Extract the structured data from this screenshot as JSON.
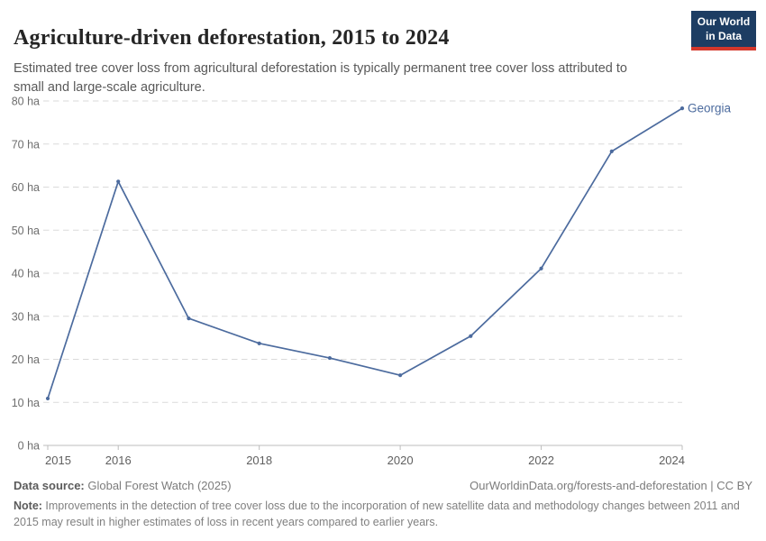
{
  "header": {
    "title": "Agriculture-driven deforestation, 2015 to 2024",
    "subtitle": "Estimated tree cover loss from agricultural deforestation is typically permanent tree cover loss attributed to small and large-scale agriculture."
  },
  "logo": {
    "line1": "Our World",
    "line2": "in Data",
    "bg_color": "#1D3D63",
    "accent_color": "#D4372B"
  },
  "chart_data": {
    "type": "line",
    "title": "Agriculture-driven deforestation, 2015 to 2024",
    "unit": "ha",
    "x": [
      2015,
      2016,
      2017,
      2018,
      2019,
      2020,
      2021,
      2022,
      2023,
      2024
    ],
    "series": [
      {
        "name": "Georgia",
        "color": "#4C6B9E",
        "values": [
          10.9,
          61.3,
          29.5,
          23.7,
          20.3,
          16.3,
          25.4,
          41.1,
          68.3,
          78.3
        ]
      }
    ],
    "ylim": [
      0,
      80
    ],
    "yticks": [
      0,
      10,
      20,
      30,
      40,
      50,
      60,
      70,
      80
    ],
    "ytick_suffix": " ha",
    "xticks": [
      2015,
      2016,
      2018,
      2020,
      2022,
      2024
    ],
    "grid": "horizontal-dashed",
    "legend": "inline-label-right",
    "grid_color": "#dadada",
    "axis_color": "#bdbdbd",
    "ytick_label_color": "#6e6e6e",
    "xtick_label_color": "#5f5f5f"
  },
  "footer": {
    "datasource_label": "Data source:",
    "datasource_value": " Global Forest Watch (2025)",
    "link": "OurWorldinData.org/forests-and-deforestation | CC BY",
    "note_label": "Note:",
    "note_value": " Improvements in the detection of tree cover loss due to the incorporation of new satellite data and methodology changes between 2011 and 2015 may result in higher estimates of loss in recent years compared to earlier years."
  }
}
